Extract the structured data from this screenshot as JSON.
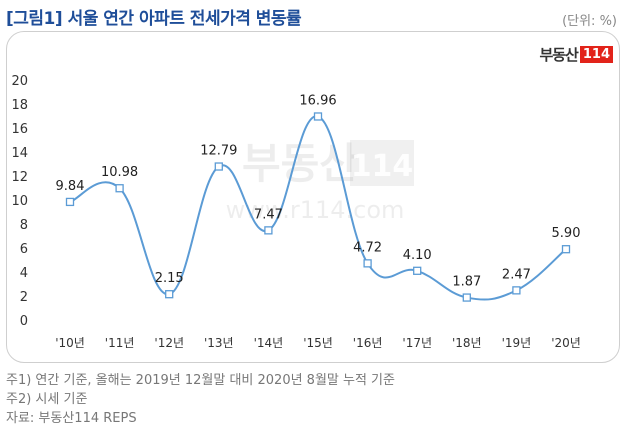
{
  "header": {
    "title": "[그림1] 서울 연간 아파트 전세가격 변동률",
    "unit": "(단위: %)"
  },
  "logo": {
    "text": "부동산",
    "number": "114"
  },
  "watermark": {
    "brand": "부동산",
    "number": "114",
    "url": "www.r114.com"
  },
  "notes": [
    "주1) 연간 기준, 올해는 2019년 12월말 대비 2020년 8월말 누적 기준",
    "주2) 시세 기준",
    "자료: 부동산114 REPS"
  ],
  "colors": {
    "line": "#5b9bd5",
    "title": "#1f4e99",
    "logo_box": "#e2231a"
  },
  "chart_data": {
    "type": "line",
    "title": "[그림1] 서울 연간 아파트 전세가격 변동률",
    "categories": [
      "'10년",
      "'11년",
      "'12년",
      "'13년",
      "'14년",
      "'15년",
      "'16년",
      "'17년",
      "'18년",
      "'19년",
      "'20년"
    ],
    "series": [
      {
        "values": [
          9.84,
          10.98,
          2.15,
          12.79,
          7.47,
          16.96,
          4.72,
          4.1,
          1.87,
          2.47,
          5.9
        ]
      }
    ],
    "data_labels": [
      "9.84",
      "10.98",
      "2.15",
      "12.79",
      "7.47",
      "16.96",
      "4.72",
      "4.10",
      "1.87",
      "2.47",
      "5.90"
    ],
    "yticks": [
      "0",
      "2",
      "4",
      "6",
      "8",
      "10",
      "12",
      "14",
      "16",
      "18",
      "20"
    ],
    "ylim": [
      0,
      20
    ],
    "xlabel": "",
    "ylabel": "",
    "grid": false,
    "legend": "none",
    "smooth": true
  }
}
